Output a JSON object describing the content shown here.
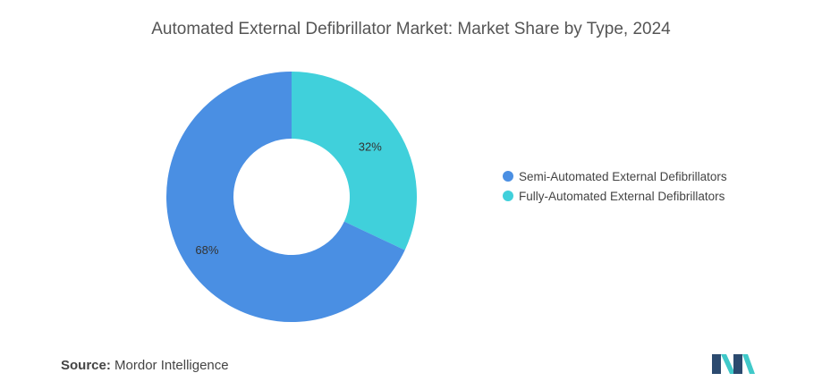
{
  "title": "Automated External Defibrillator Market: Market Share by Type, 2024",
  "chart_data": {
    "type": "pie",
    "donut": true,
    "title": "Automated External Defibrillator Market: Market Share by Type, 2024",
    "slices": [
      {
        "name": "Fully-Automated External Defibrillators",
        "value": 32,
        "label": "32%",
        "color": "#40D0DB"
      },
      {
        "name": "Semi-Automated External Defibrillators",
        "value": 68,
        "label": "68%",
        "color": "#4A8FE3"
      }
    ],
    "legend": {
      "position": "right",
      "entries": [
        {
          "label": "Semi-Automated External Defibrillators",
          "color": "#4A8FE3"
        },
        {
          "label": "Fully-Automated External Defibrillators",
          "color": "#40D0DB"
        }
      ]
    }
  },
  "footer": {
    "source_label": "Source:",
    "source_value": "Mordor Intelligence"
  },
  "logo": {
    "icon": "mordor-intelligence-logo",
    "colors": [
      "#2B4A6F",
      "#40C9C9"
    ]
  }
}
